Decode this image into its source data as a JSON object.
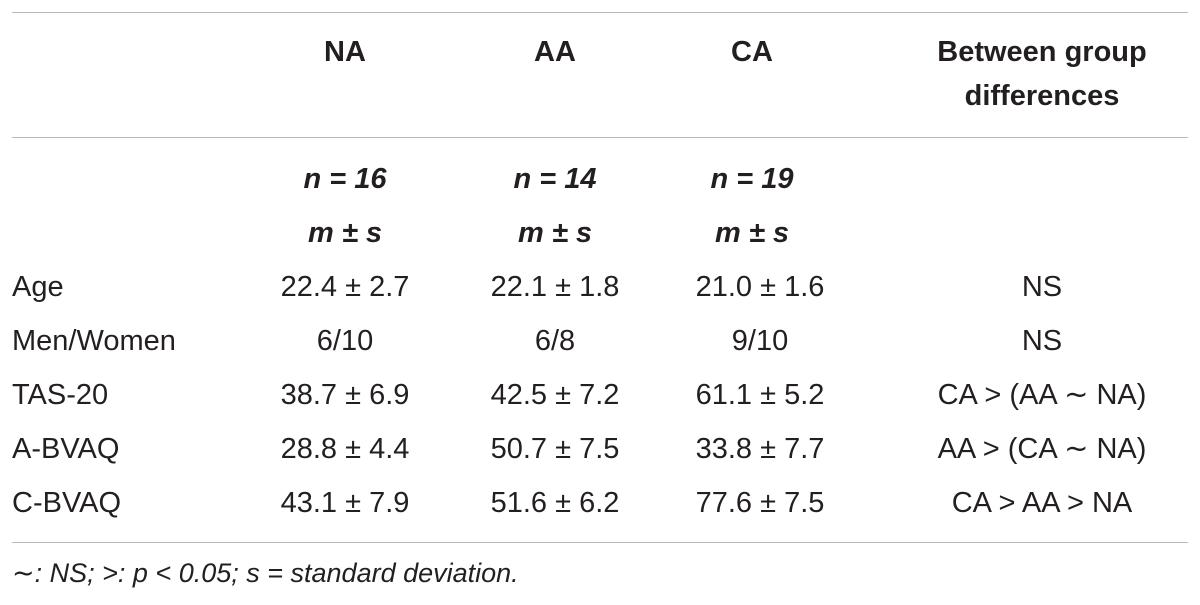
{
  "table": {
    "headers": [
      "",
      "NA",
      "AA",
      "CA",
      "Between group differences"
    ],
    "n_row": [
      "",
      "n = 16",
      "n = 14",
      "n = 19",
      ""
    ],
    "stat_row": [
      "",
      "m ± s",
      "m ± s",
      "m ± s",
      ""
    ],
    "rows": [
      [
        "Age",
        "22.4 ± 2.7",
        "22.1 ± 1.8",
        "21.0 ± 1.6",
        "NS"
      ],
      [
        "Men/Women",
        "6/10",
        "6/8",
        "9/10",
        "NS"
      ],
      [
        "TAS-20",
        "38.7 ± 6.9",
        "42.5 ± 7.2",
        "61.1 ± 5.2",
        "CA > (AA ∼ NA)"
      ],
      [
        "A-BVAQ",
        "28.8 ± 4.4",
        "50.7 ± 7.5",
        "33.8 ± 7.7",
        "AA > (CA ∼ NA)"
      ],
      [
        "C-BVAQ",
        "43.1 ± 7.9",
        "51.6 ± 6.2",
        "77.6 ± 7.5",
        "CA > AA > NA"
      ]
    ],
    "footnote": "∼: NS; >: p < 0.05; s = standard deviation."
  }
}
